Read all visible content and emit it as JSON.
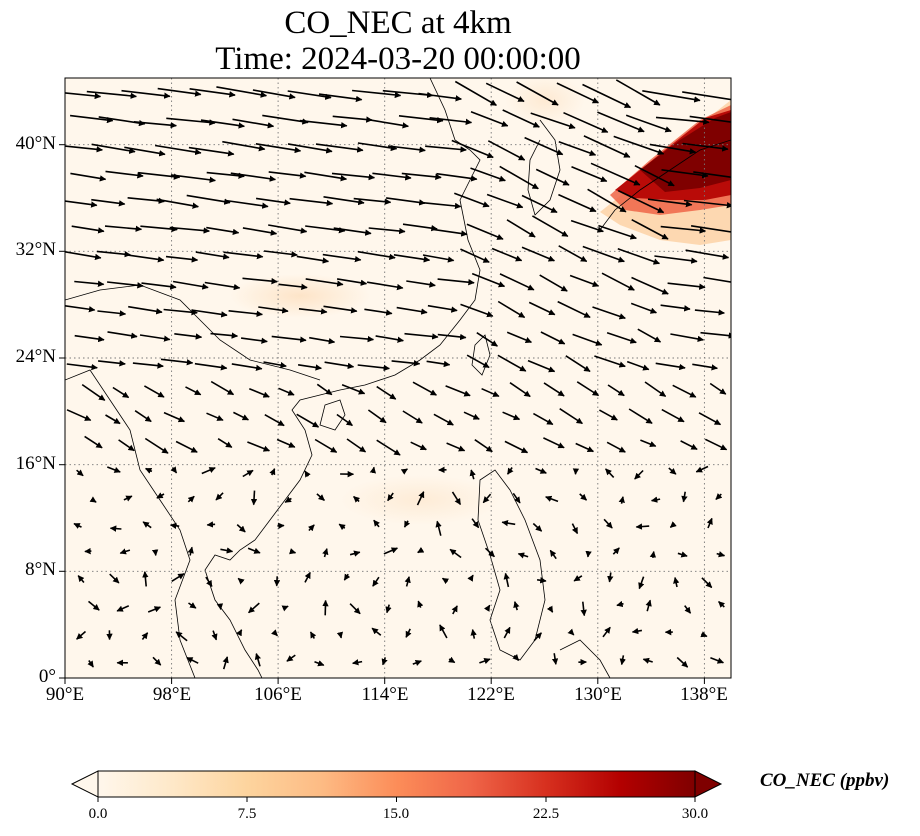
{
  "title_line1": "CO_NEC at 4km",
  "title_line2": "Time: 2024-03-20 00:00:00",
  "map": {
    "extent": {
      "lon_min": 90,
      "lon_max": 140,
      "lat_min": 0,
      "lat_max": 45
    },
    "lat_ticks": [
      {
        "value": 0,
        "label": "0°"
      },
      {
        "value": 8,
        "label": "8°N"
      },
      {
        "value": 16,
        "label": "16°N"
      },
      {
        "value": 24,
        "label": "24°N"
      },
      {
        "value": 32,
        "label": "32°N"
      },
      {
        "value": 40,
        "label": "40°N"
      }
    ],
    "lon_ticks": [
      {
        "value": 90,
        "label": "90°E"
      },
      {
        "value": 98,
        "label": "98°E"
      },
      {
        "value": 106,
        "label": "106°E"
      },
      {
        "value": 114,
        "label": "114°E"
      },
      {
        "value": 122,
        "label": "122°E"
      },
      {
        "value": 130,
        "label": "130°E"
      },
      {
        "value": 138,
        "label": "138°E"
      }
    ],
    "gridlines": "dotted",
    "high_concentration_region": "Japan / Korea (130°E–140°E, 33°N–43°N)",
    "wind_field": "westerly flow north of 24°N, weak variable winds south"
  },
  "colorbar": {
    "title": "CO_NEC (ppbv)",
    "min": 0.0,
    "max": 30.0,
    "ticks": [
      "0.0",
      "7.5",
      "15.0",
      "22.5",
      "30.0"
    ],
    "colormap": "OrRd",
    "extend": "both",
    "colors": [
      "#fff7ec",
      "#fee8c8",
      "#fdd49e",
      "#fdbb84",
      "#fc8d59",
      "#ef6548",
      "#d7301f",
      "#b30000",
      "#7f0000"
    ]
  }
}
